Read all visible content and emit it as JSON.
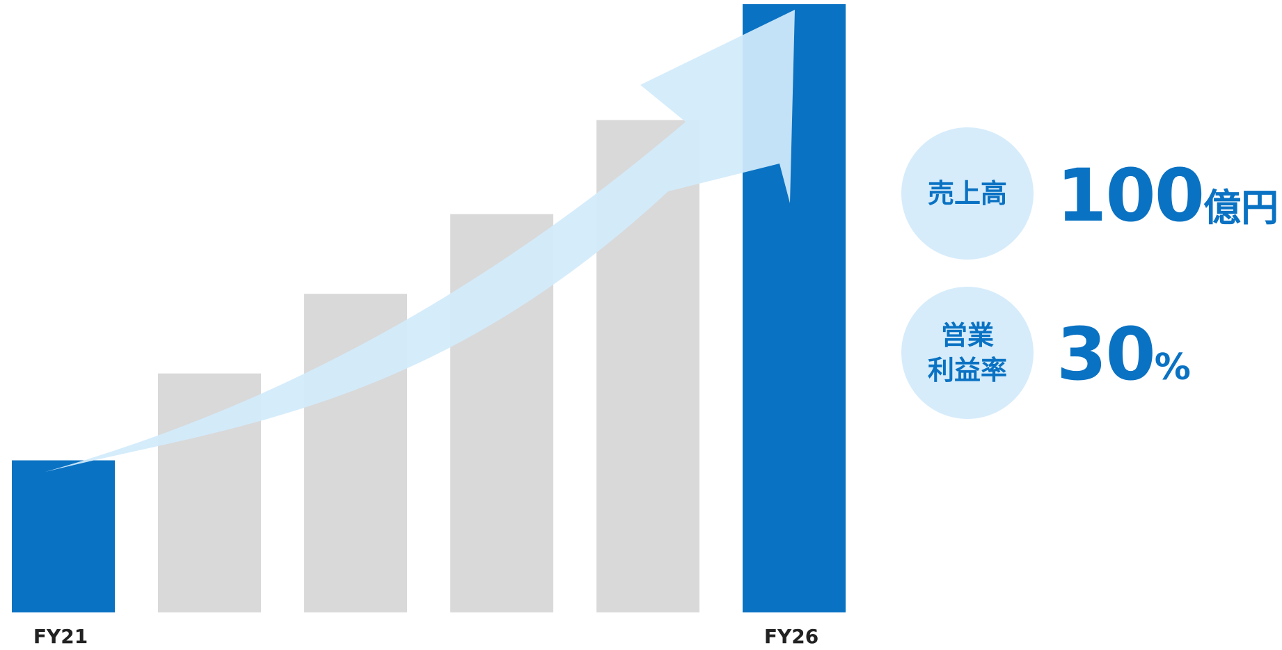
{
  "chart_data": {
    "type": "bar",
    "categories": [
      "FY21",
      "",
      "",
      "",
      "",
      "FY26"
    ],
    "values": [
      21,
      33,
      44,
      55,
      68,
      84
    ],
    "highlighted": [
      0,
      5
    ],
    "colors": {
      "highlight": "#0a72c3",
      "base": "#d9d9d9",
      "arrow": "#d2ebfb"
    }
  },
  "kpis": [
    {
      "label": "売上高",
      "number": "100",
      "unit": "億円"
    },
    {
      "label": "営業\n利益率",
      "number": "30",
      "unit": "%"
    }
  ]
}
